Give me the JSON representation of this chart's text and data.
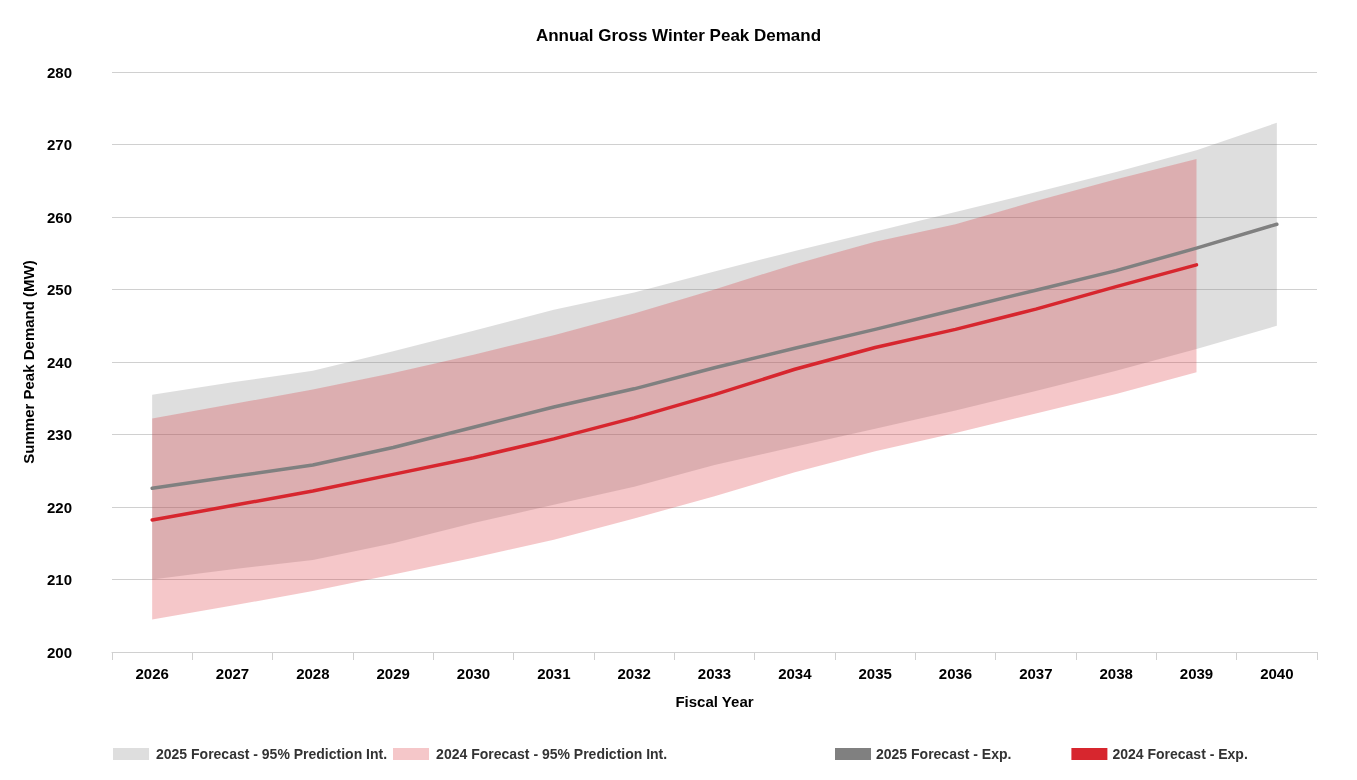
{
  "chart_data": {
    "type": "line",
    "title": "Annual Gross Winter Peak Demand",
    "xlabel": "Fiscal Year",
    "ylabel": "Summer Peak Demand (MW)",
    "categories": [
      "2026",
      "2027",
      "2028",
      "2029",
      "2030",
      "2031",
      "2032",
      "2033",
      "2034",
      "2035",
      "2036",
      "2037",
      "2038",
      "2039",
      "2040"
    ],
    "ylim": [
      200,
      280
    ],
    "yticks": [
      200,
      210,
      220,
      230,
      240,
      250,
      260,
      270,
      280
    ],
    "grid": "y",
    "legend": "bottom",
    "marker": "none",
    "line_style": "solid",
    "annotations": [
      "2025 Forecast - 95% Prediction Int.",
      "2024 Forecast - 95% Prediction Int."
    ],
    "series": [
      {
        "name": "2025 Forecast - Exp.",
        "color": "#808080",
        "values": [
          222.6,
          224.2,
          225.8,
          228.2,
          231,
          233.8,
          236.3,
          239.2,
          241.9,
          244.5,
          247.2,
          249.9,
          252.6,
          255.7,
          259
        ],
        "lower": [
          210,
          211.4,
          212.7,
          215,
          217.8,
          220.3,
          222.8,
          225.8,
          228.3,
          230.8,
          233.3,
          236,
          238.8,
          241.8,
          245
        ],
        "upper": [
          235.5,
          237.2,
          238.8,
          241.5,
          244.3,
          247.2,
          249.6,
          252.5,
          255.3,
          258,
          260.7,
          263.4,
          266.2,
          269.2,
          273
        ]
      },
      {
        "name": "2024 Forecast - Exp.",
        "color": "#d7262e",
        "values": [
          218.2,
          220.2,
          222.2,
          224.5,
          226.8,
          229.4,
          232.3,
          235.5,
          239,
          242,
          244.5,
          247.3,
          250.4,
          253.4,
          null
        ],
        "lower": [
          204.5,
          206.4,
          208.4,
          210.7,
          213,
          215.5,
          218.4,
          221.5,
          224.8,
          227.7,
          230.2,
          232.9,
          235.6,
          238.6,
          null
        ],
        "upper": [
          232.2,
          234.2,
          236.2,
          238.5,
          241,
          243.7,
          246.7,
          250,
          253.5,
          256.6,
          259,
          262.2,
          265.2,
          268,
          null
        ]
      }
    ]
  }
}
